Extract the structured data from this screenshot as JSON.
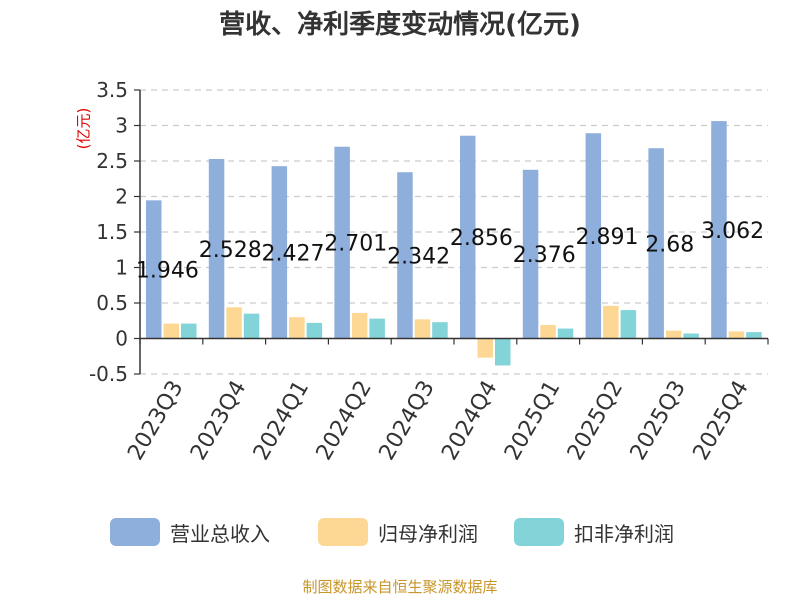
{
  "chart_data": {
    "type": "bar",
    "title": "营收、净利季度变动情况(亿元)",
    "unit_label": "(亿元)",
    "categories": [
      "2023Q3",
      "2023Q4",
      "2024Q1",
      "2024Q2",
      "2024Q3",
      "2024Q4",
      "2025Q1",
      "2025Q2",
      "2025Q3",
      "2025Q4"
    ],
    "series": [
      {
        "name": "营业总收入",
        "color": "#8eaedb",
        "values": [
          1.946,
          2.528,
          2.427,
          2.701,
          2.342,
          2.856,
          2.376,
          2.891,
          2.68,
          3.062
        ],
        "data_labels": [
          "1.946",
          "2.528",
          "2.427",
          "2.701",
          "2.342",
          "2.856",
          "2.376",
          "2.891",
          "2.68",
          "3.062"
        ]
      },
      {
        "name": "归母净利润",
        "color": "#fdd794",
        "values": [
          0.21,
          0.44,
          0.3,
          0.36,
          0.27,
          -0.27,
          0.19,
          0.46,
          0.11,
          0.1
        ]
      },
      {
        "name": "扣非净利润",
        "color": "#83d4d8",
        "values": [
          0.21,
          0.35,
          0.22,
          0.28,
          0.23,
          -0.38,
          0.14,
          0.4,
          0.07,
          0.09
        ]
      }
    ],
    "ylim": [
      -0.5,
      3.5
    ],
    "yticks": [
      "-0.5",
      "0",
      "0.5",
      "1",
      "1.5",
      "2",
      "2.5",
      "3",
      "3.5"
    ],
    "grid": true,
    "legend_position": "bottom"
  },
  "footer": {
    "source": "制图数据来自恒生聚源数据库"
  }
}
